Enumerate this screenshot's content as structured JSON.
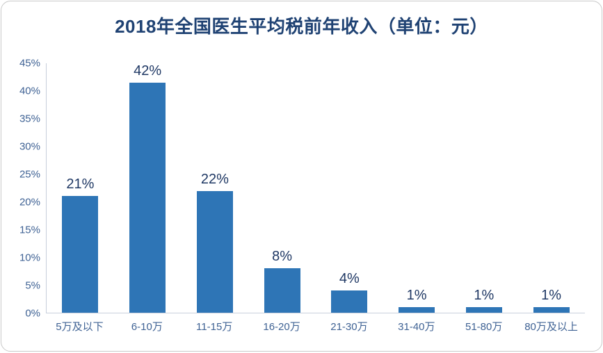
{
  "chart_data": {
    "type": "bar",
    "title": "2018年全国医生平均税前年收入（单位：元）",
    "categories": [
      "5万及以下",
      "6-10万",
      "11-15万",
      "16-20万",
      "21-30万",
      "31-40万",
      "51-80万",
      "80万及以上"
    ],
    "values": [
      21,
      42,
      22,
      8,
      4,
      1,
      1,
      1
    ],
    "value_labels": [
      "21%",
      "42%",
      "22%",
      "8%",
      "4%",
      "1%",
      "1%",
      "1%"
    ],
    "y_ticks": [
      "0%",
      "5%",
      "10%",
      "15%",
      "20%",
      "25%",
      "30%",
      "35%",
      "40%",
      "45%"
    ],
    "ylim": [
      0,
      45
    ],
    "xlabel": "",
    "ylabel": "",
    "grid": false,
    "legend": "none",
    "colors": {
      "bar": "#2e75b6",
      "title": "#1f4273",
      "axis_label": "#3f6294",
      "value_label": "#1f3864",
      "axis_line": "#c7cedb",
      "frame_border": "#c9c9c9"
    }
  }
}
